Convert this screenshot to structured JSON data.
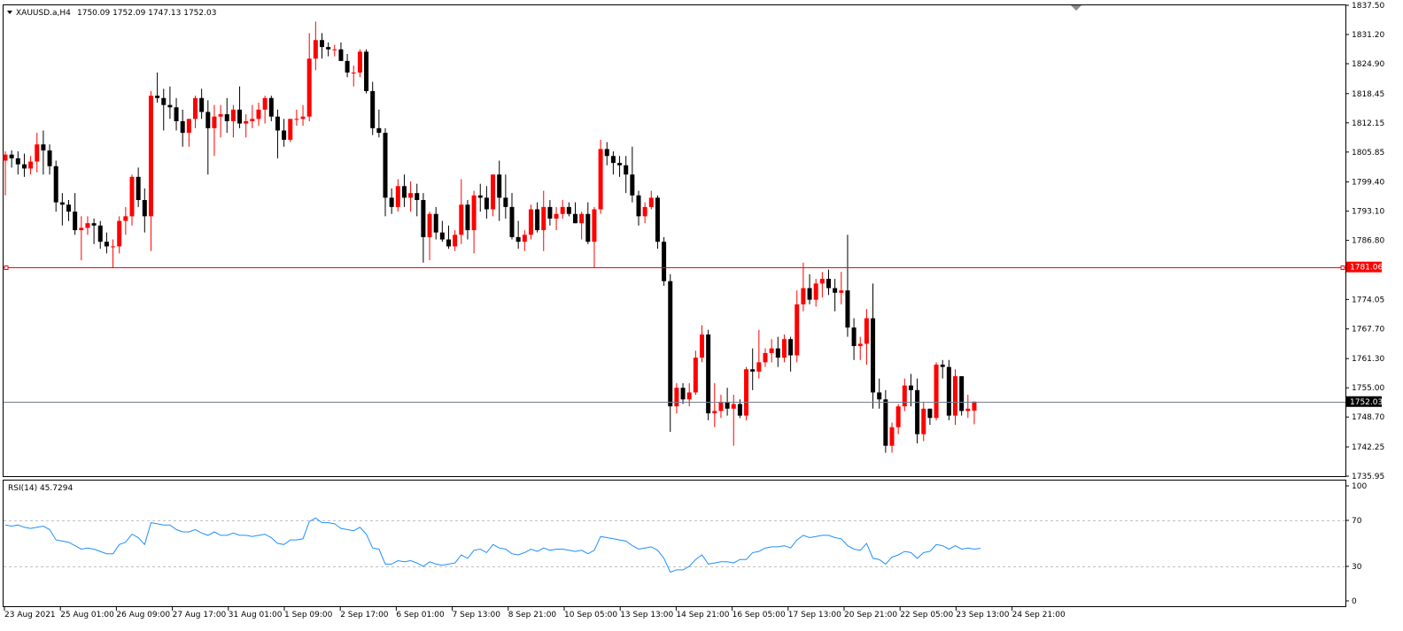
{
  "header": {
    "symbol_label": "XAUUSD.a,H4",
    "ohlc_text": "1750.09 1752.09 1747.13 1752.03"
  },
  "rsi_header": {
    "label": "RSI(14) 45.7294"
  },
  "colors": {
    "bull": "#ff0000",
    "bear": "#000000",
    "rsi_line": "#1e90ff",
    "hline_red": "#ff0000",
    "hline_price": "#708090",
    "grid_dash": "#c0c0c0"
  },
  "badges": {
    "red_line_price": "1781.06",
    "current_price": "1752.03"
  },
  "chart_data": [
    {
      "type": "candlestick",
      "title": "XAUUSD.a,H4",
      "xlabel": "",
      "ylabel": "",
      "ylim": [
        1735.95,
        1837.5
      ],
      "y_tick_labels": [
        "1837.50",
        "1831.20",
        "1824.90",
        "1818.45",
        "1812.15",
        "1805.85",
        "1799.40",
        "1793.10",
        "1786.80",
        "1781.06",
        "1774.05",
        "1767.70",
        "1761.30",
        "1755.00",
        "1752.03",
        "1748.70",
        "1742.25",
        "1735.95"
      ],
      "x_tick_labels": [
        "23 Aug 2021",
        "25 Aug 01:00",
        "26 Aug 09:00",
        "27 Aug 17:00",
        "31 Aug 01:00",
        "1 Sep 09:00",
        "2 Sep 17:00",
        "6 Sep 01:00",
        "7 Sep 13:00",
        "8 Sep 21:00",
        "10 Sep 05:00",
        "13 Sep 13:00",
        "14 Sep 21:00",
        "16 Sep 05:00",
        "17 Sep 13:00",
        "20 Sep 21:00",
        "22 Sep 05:00",
        "23 Sep 13:00",
        "24 Sep 21:00"
      ],
      "horizontal_lines": [
        {
          "price": 1781.06,
          "color": "red"
        },
        {
          "price": 1752.03,
          "color": "slategray"
        }
      ],
      "candles": [
        [
          1804.0,
          1806.0,
          1796.5,
          1805.3
        ],
        [
          1805.3,
          1806.2,
          1802.5,
          1804.5
        ],
        [
          1804.5,
          1806.0,
          1801.0,
          1803.2
        ],
        [
          1803.2,
          1805.5,
          1800.5,
          1802.3
        ],
        [
          1802.3,
          1805.0,
          1801.0,
          1803.8
        ],
        [
          1803.8,
          1810.0,
          1801.5,
          1807.5
        ],
        [
          1807.5,
          1810.5,
          1801.0,
          1806.2
        ],
        [
          1806.2,
          1807.5,
          1801.0,
          1802.8
        ],
        [
          1802.8,
          1804.0,
          1793.0,
          1795.0
        ],
        [
          1795.0,
          1797.0,
          1790.0,
          1794.5
        ],
        [
          1794.5,
          1795.5,
          1791.0,
          1793.0
        ],
        [
          1793.0,
          1797.0,
          1788.0,
          1789.0
        ],
        [
          1789.0,
          1792.0,
          1782.5,
          1789.5
        ],
        [
          1789.5,
          1792.0,
          1788.0,
          1790.5
        ],
        [
          1790.5,
          1791.5,
          1786.0,
          1790.0
        ],
        [
          1790.0,
          1791.0,
          1785.0,
          1786.5
        ],
        [
          1786.5,
          1788.5,
          1784.0,
          1785.5
        ],
        [
          1785.5,
          1787.0,
          1781.0,
          1785.5
        ],
        [
          1785.5,
          1792.0,
          1784.0,
          1791.0
        ],
        [
          1791.0,
          1794.0,
          1788.0,
          1792.0
        ],
        [
          1792.0,
          1801.0,
          1790.0,
          1800.5
        ],
        [
          1800.5,
          1802.5,
          1794.0,
          1795.5
        ],
        [
          1795.5,
          1798.0,
          1788.5,
          1792.0
        ],
        [
          1792.0,
          1819.0,
          1784.5,
          1818.0
        ],
        [
          1818.0,
          1823.0,
          1816.5,
          1817.5
        ],
        [
          1817.5,
          1819.5,
          1810.5,
          1816.0
        ],
        [
          1816.0,
          1820.0,
          1813.0,
          1815.5
        ],
        [
          1815.5,
          1817.5,
          1810.5,
          1812.5
        ],
        [
          1812.5,
          1815.0,
          1807.0,
          1810.0
        ],
        [
          1810.0,
          1813.0,
          1807.0,
          1813.0
        ],
        [
          1813.0,
          1818.0,
          1811.0,
          1817.5
        ],
        [
          1817.5,
          1819.5,
          1813.0,
          1814.5
        ],
        [
          1814.5,
          1817.0,
          1801.0,
          1811.0
        ],
        [
          1811.0,
          1816.0,
          1805.0,
          1813.5
        ],
        [
          1813.5,
          1816.0,
          1809.0,
          1814.0
        ],
        [
          1814.0,
          1817.5,
          1810.0,
          1812.5
        ],
        [
          1812.5,
          1816.0,
          1809.0,
          1815.0
        ],
        [
          1815.0,
          1820.0,
          1811.0,
          1812.0
        ],
        [
          1812.0,
          1814.0,
          1809.0,
          1812.5
        ],
        [
          1812.5,
          1816.0,
          1811.0,
          1813.0
        ],
        [
          1813.0,
          1816.5,
          1811.5,
          1815.0
        ],
        [
          1815.0,
          1818.0,
          1812.0,
          1817.5
        ],
        [
          1817.5,
          1818.0,
          1812.5,
          1813.5
        ],
        [
          1813.5,
          1815.0,
          1804.5,
          1810.5
        ],
        [
          1810.5,
          1813.0,
          1807.0,
          1808.5
        ],
        [
          1808.5,
          1813.0,
          1808.0,
          1813.0
        ],
        [
          1813.0,
          1815.0,
          1811.5,
          1813.0
        ],
        [
          1813.0,
          1816.0,
          1811.5,
          1813.5
        ],
        [
          1813.5,
          1831.5,
          1812.5,
          1826.0
        ],
        [
          1826.0,
          1834.0,
          1823.5,
          1830.0
        ],
        [
          1830.0,
          1831.5,
          1826.0,
          1828.5
        ],
        [
          1828.5,
          1829.5,
          1826.5,
          1828.0
        ],
        [
          1828.0,
          1829.0,
          1826.5,
          1828.0
        ],
        [
          1828.0,
          1829.5,
          1825.5,
          1825.5
        ],
        [
          1825.5,
          1827.0,
          1822.0,
          1823.0
        ],
        [
          1823.0,
          1824.5,
          1820.0,
          1823.0
        ],
        [
          1823.0,
          1828.0,
          1822.0,
          1827.5
        ],
        [
          1827.5,
          1828.0,
          1818.5,
          1819.0
        ],
        [
          1819.0,
          1821.0,
          1809.5,
          1811.0
        ],
        [
          1811.0,
          1815.0,
          1809.0,
          1810.0
        ],
        [
          1810.0,
          1811.0,
          1792.0,
          1796.0
        ],
        [
          1796.0,
          1798.0,
          1792.5,
          1794.0
        ],
        [
          1794.0,
          1800.0,
          1793.0,
          1798.5
        ],
        [
          1798.5,
          1801.0,
          1794.0,
          1796.0
        ],
        [
          1796.0,
          1799.5,
          1793.0,
          1797.0
        ],
        [
          1797.0,
          1799.0,
          1792.0,
          1795.5
        ],
        [
          1795.5,
          1797.0,
          1782.0,
          1787.5
        ],
        [
          1787.5,
          1793.0,
          1782.5,
          1792.5
        ],
        [
          1792.5,
          1794.0,
          1787.0,
          1788.5
        ],
        [
          1788.5,
          1791.0,
          1786.5,
          1787.0
        ],
        [
          1787.0,
          1790.0,
          1785.0,
          1785.5
        ],
        [
          1785.5,
          1789.0,
          1784.5,
          1788.0
        ],
        [
          1788.0,
          1800.0,
          1786.0,
          1794.5
        ],
        [
          1794.5,
          1795.5,
          1787.0,
          1789.0
        ],
        [
          1789.0,
          1797.5,
          1784.0,
          1796.5
        ],
        [
          1796.5,
          1799.0,
          1793.0,
          1796.0
        ],
        [
          1796.0,
          1798.5,
          1791.5,
          1793.5
        ],
        [
          1793.5,
          1801.0,
          1792.0,
          1801.0
        ],
        [
          1801.0,
          1804.0,
          1791.0,
          1796.0
        ],
        [
          1796.0,
          1801.0,
          1791.5,
          1794.0
        ],
        [
          1794.0,
          1797.0,
          1787.0,
          1787.5
        ],
        [
          1787.5,
          1791.0,
          1785.0,
          1786.5
        ],
        [
          1786.5,
          1789.0,
          1784.5,
          1788.0
        ],
        [
          1788.0,
          1794.5,
          1787.0,
          1793.5
        ],
        [
          1793.5,
          1795.0,
          1788.5,
          1789.0
        ],
        [
          1789.0,
          1797.5,
          1784.5,
          1794.0
        ],
        [
          1794.0,
          1795.5,
          1790.0,
          1791.5
        ],
        [
          1791.5,
          1794.0,
          1789.0,
          1792.5
        ],
        [
          1792.5,
          1795.5,
          1791.5,
          1794.0
        ],
        [
          1794.0,
          1795.0,
          1792.0,
          1792.5
        ],
        [
          1792.5,
          1795.0,
          1790.5,
          1790.5
        ],
        [
          1790.5,
          1793.0,
          1787.0,
          1792.5
        ],
        [
          1792.5,
          1795.0,
          1786.0,
          1786.5
        ],
        [
          1786.5,
          1794.0,
          1781.0,
          1793.5
        ],
        [
          1793.5,
          1808.5,
          1792.5,
          1806.5
        ],
        [
          1806.5,
          1808.0,
          1803.0,
          1805.0
        ],
        [
          1805.0,
          1806.0,
          1801.0,
          1803.5
        ],
        [
          1803.5,
          1805.0,
          1800.5,
          1803.0
        ],
        [
          1803.0,
          1805.0,
          1797.0,
          1801.0
        ],
        [
          1801.0,
          1807.0,
          1795.0,
          1796.5
        ],
        [
          1796.5,
          1797.5,
          1790.0,
          1792.0
        ],
        [
          1792.0,
          1795.0,
          1790.5,
          1794.0
        ],
        [
          1794.0,
          1797.5,
          1793.5,
          1796.0
        ],
        [
          1796.0,
          1796.5,
          1785.0,
          1786.5
        ],
        [
          1786.5,
          1787.5,
          1777.0,
          1778.0
        ],
        [
          1778.0,
          1779.5,
          1745.5,
          1751.0
        ],
        [
          1751.0,
          1756.0,
          1749.5,
          1755.0
        ],
        [
          1755.0,
          1756.0,
          1751.5,
          1752.5
        ],
        [
          1752.5,
          1756.0,
          1751.0,
          1754.0
        ],
        [
          1754.0,
          1763.0,
          1753.5,
          1761.5
        ],
        [
          1761.5,
          1768.5,
          1760.5,
          1766.5
        ],
        [
          1766.5,
          1767.5,
          1748.0,
          1749.5
        ],
        [
          1749.5,
          1756.0,
          1746.5,
          1750.0
        ],
        [
          1750.0,
          1753.5,
          1748.5,
          1752.0
        ],
        [
          1752.0,
          1755.0,
          1749.0,
          1750.5
        ],
        [
          1750.5,
          1753.5,
          1742.5,
          1751.5
        ],
        [
          1751.5,
          1752.5,
          1748.5,
          1749.0
        ],
        [
          1749.0,
          1759.5,
          1748.0,
          1759.0
        ],
        [
          1759.0,
          1763.5,
          1754.5,
          1758.5
        ],
        [
          1758.5,
          1767.5,
          1757.0,
          1760.5
        ],
        [
          1760.5,
          1763.5,
          1759.5,
          1762.5
        ],
        [
          1762.5,
          1765.5,
          1760.5,
          1763.5
        ],
        [
          1763.5,
          1766.0,
          1759.5,
          1761.5
        ],
        [
          1761.5,
          1766.5,
          1760.5,
          1765.5
        ],
        [
          1765.5,
          1766.0,
          1758.5,
          1762.0
        ],
        [
          1762.0,
          1776.0,
          1760.5,
          1773.0
        ],
        [
          1773.0,
          1782.0,
          1771.5,
          1776.5
        ],
        [
          1776.5,
          1779.5,
          1773.0,
          1774.0
        ],
        [
          1774.0,
          1778.5,
          1772.5,
          1777.5
        ],
        [
          1777.5,
          1780.0,
          1774.5,
          1778.5
        ],
        [
          1778.5,
          1780.5,
          1775.0,
          1776.5
        ],
        [
          1776.5,
          1778.5,
          1771.5,
          1775.5
        ],
        [
          1775.5,
          1780.0,
          1773.0,
          1776.0
        ],
        [
          1776.0,
          1788.0,
          1766.0,
          1768.0
        ],
        [
          1768.0,
          1770.0,
          1761.0,
          1764.0
        ],
        [
          1764.0,
          1766.0,
          1761.0,
          1764.5
        ],
        [
          1764.5,
          1772.0,
          1760.0,
          1770.0
        ],
        [
          1770.0,
          1777.5,
          1750.5,
          1754.0
        ],
        [
          1754.0,
          1757.0,
          1750.5,
          1752.5
        ],
        [
          1752.5,
          1754.5,
          1741.0,
          1742.5
        ],
        [
          1742.5,
          1747.5,
          1741.0,
          1746.5
        ],
        [
          1746.5,
          1751.5,
          1745.0,
          1751.0
        ],
        [
          1751.0,
          1757.0,
          1750.0,
          1755.5
        ],
        [
          1755.5,
          1758.0,
          1751.0,
          1754.5
        ],
        [
          1754.5,
          1757.0,
          1743.0,
          1745.0
        ],
        [
          1745.0,
          1752.0,
          1743.5,
          1750.5
        ],
        [
          1750.5,
          1750.5,
          1747.0,
          1748.5
        ],
        [
          1748.5,
          1760.5,
          1748.0,
          1760.0
        ],
        [
          1760.0,
          1761.0,
          1757.0,
          1759.5
        ],
        [
          1759.5,
          1761.0,
          1748.0,
          1749.0
        ],
        [
          1749.0,
          1759.0,
          1747.0,
          1757.5
        ],
        [
          1757.5,
          1757.5,
          1749.0,
          1750.0
        ],
        [
          1750.0,
          1753.5,
          1748.5,
          1750.5
        ],
        [
          1750.09,
          1752.09,
          1747.13,
          1752.03
        ]
      ]
    },
    {
      "type": "line",
      "title": "RSI(14) 45.7294",
      "xlabel": "",
      "ylabel": "",
      "ylim": [
        0,
        100
      ],
      "y_tick_labels": [
        "100",
        "70",
        "30",
        "0"
      ],
      "levels": [
        70,
        30
      ],
      "series": [
        {
          "name": "RSI(14)",
          "values": [
            66,
            65,
            66,
            64,
            63,
            64,
            65,
            62,
            53,
            52,
            51,
            48,
            45,
            46,
            45,
            43,
            41,
            41,
            49,
            51,
            58,
            55,
            49,
            68,
            67,
            66,
            66,
            62,
            60,
            60,
            62,
            59,
            57,
            60,
            57,
            57,
            59,
            57,
            57,
            56,
            57,
            58,
            55,
            50,
            49,
            53,
            53,
            54,
            69,
            72,
            68,
            68,
            67,
            63,
            62,
            61,
            64,
            58,
            46,
            45,
            32,
            32,
            35,
            34,
            35,
            33,
            30,
            34,
            32,
            31,
            32,
            33,
            40,
            37,
            44,
            45,
            42,
            49,
            46,
            45,
            41,
            40,
            42,
            45,
            43,
            46,
            44,
            45,
            45,
            44,
            43,
            44,
            41,
            44,
            56,
            55,
            54,
            53,
            52,
            48,
            45,
            46,
            47,
            44,
            37,
            25,
            27,
            27,
            30,
            36,
            40,
            32,
            33,
            34,
            34,
            33,
            36,
            36,
            42,
            43,
            46,
            47,
            47,
            48,
            46,
            53,
            57,
            55,
            56,
            57,
            57,
            55,
            54,
            48,
            45,
            44,
            50,
            37,
            36,
            32,
            38,
            40,
            43,
            42,
            37,
            42,
            43,
            49,
            48,
            45,
            48,
            45,
            46,
            45,
            45.73
          ]
        }
      ]
    }
  ]
}
